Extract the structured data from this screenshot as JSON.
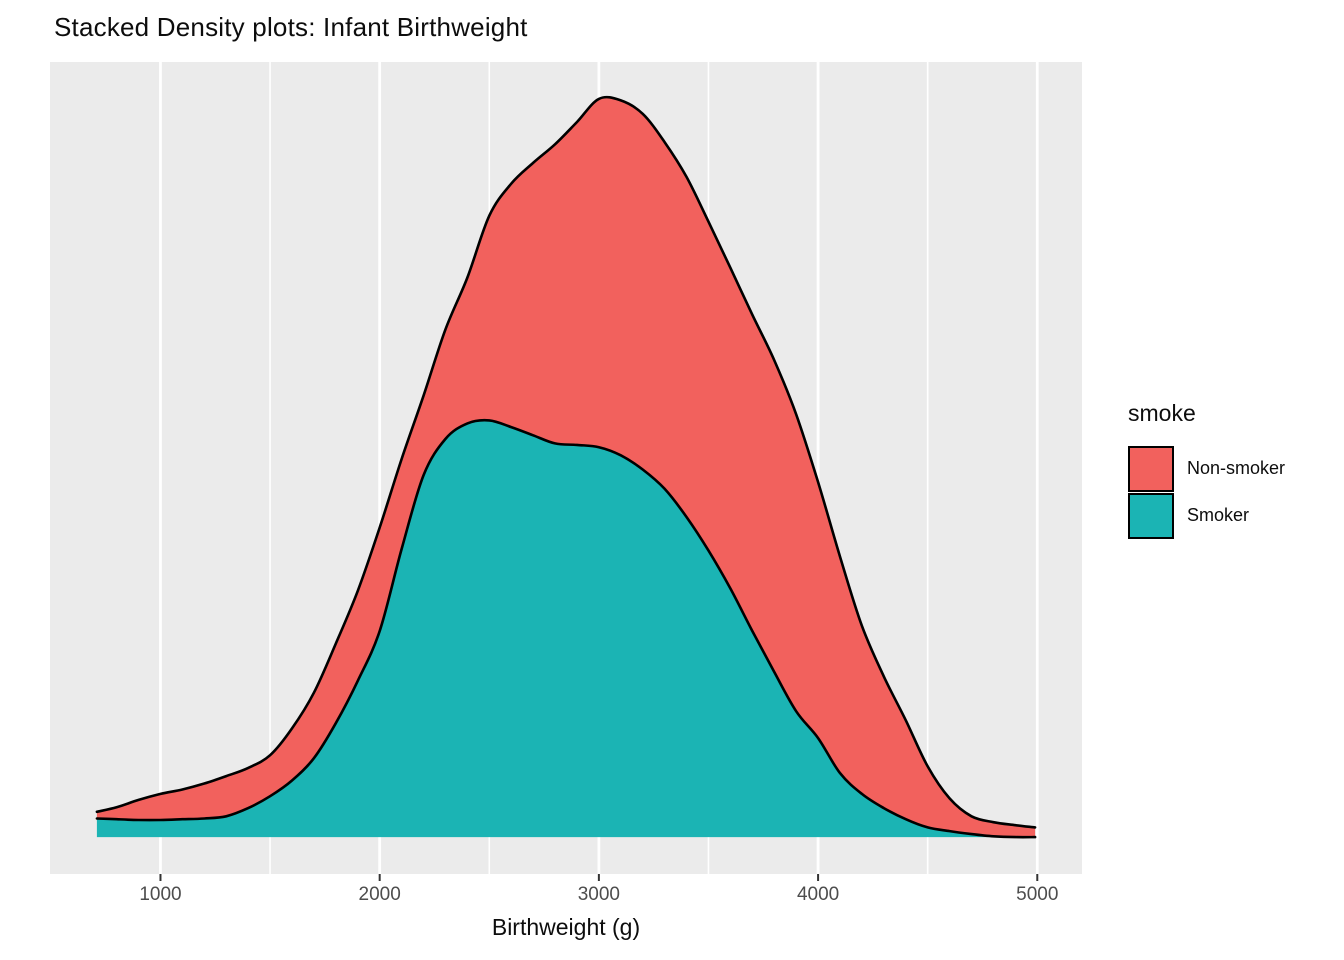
{
  "title": "Stacked Density plots: Infant Birthweight",
  "x_axis": {
    "label": "Birthweight (g)",
    "tick_labels": [
      "1000",
      "2000",
      "3000",
      "4000",
      "5000"
    ]
  },
  "y_axis": {
    "label": "",
    "tick_labels": []
  },
  "legend": {
    "title": "smoke",
    "items": [
      {
        "label": "Non-smoker",
        "color": "#F2615D"
      },
      {
        "label": "Smoker",
        "color": "#1BB4B4"
      }
    ]
  },
  "style": {
    "background": "#FFFFFF",
    "panel_background": "#EBEBEB",
    "grid_color": "#FFFFFF",
    "outline_color": "#000000",
    "tick_label_color": "#4D4D4D"
  },
  "chart_data": {
    "type": "area",
    "subtype": "stacked-density",
    "title": "Stacked Density plots: Infant Birthweight",
    "xlabel": "Birthweight (g)",
    "ylabel": "",
    "legend_title": "smoke",
    "legend_position": "right",
    "grid": "vertical-only",
    "xlim": [
      710,
      4990
    ],
    "ylim": [
      0,
      9.92
    ],
    "y_units": "density x 1e-4 per g",
    "x_ticks": [
      1000,
      2000,
      3000,
      4000,
      5000
    ],
    "x_minor_ticks": [
      1500,
      2500,
      3500,
      4500
    ],
    "x": [
      710,
      800,
      900,
      1000,
      1100,
      1200,
      1300,
      1400,
      1500,
      1600,
      1700,
      1800,
      1900,
      2000,
      2100,
      2200,
      2300,
      2400,
      2500,
      2600,
      2700,
      2800,
      2900,
      3000,
      3100,
      3200,
      3300,
      3400,
      3500,
      3600,
      3700,
      3800,
      3900,
      4000,
      4100,
      4200,
      4300,
      4400,
      4500,
      4600,
      4700,
      4800,
      4900,
      4990
    ],
    "series": [
      {
        "name": "Smoker",
        "color": "#1BB4B4",
        "stack_order": "bottom",
        "values": [
          0.25,
          0.24,
          0.23,
          0.23,
          0.24,
          0.25,
          0.28,
          0.39,
          0.55,
          0.76,
          1.06,
          1.53,
          2.1,
          2.77,
          3.87,
          4.86,
          5.35,
          5.56,
          5.6,
          5.51,
          5.4,
          5.29,
          5.27,
          5.24,
          5.13,
          4.94,
          4.68,
          4.3,
          3.85,
          3.34,
          2.77,
          2.22,
          1.69,
          1.33,
          0.86,
          0.58,
          0.39,
          0.24,
          0.13,
          0.08,
          0.04,
          0.01,
          0.0,
          0.0
        ]
      },
      {
        "name": "Non-smoker",
        "color": "#F2615D",
        "stack_order": "top",
        "values": [
          0.09,
          0.16,
          0.27,
          0.35,
          0.4,
          0.47,
          0.54,
          0.54,
          0.55,
          0.7,
          0.88,
          1.07,
          1.21,
          1.39,
          1.21,
          1.07,
          1.47,
          1.96,
          2.75,
          3.27,
          3.66,
          4.02,
          4.34,
          4.68,
          4.77,
          4.78,
          4.66,
          4.57,
          4.42,
          4.31,
          4.25,
          4.19,
          3.99,
          3.44,
          2.91,
          2.26,
          1.77,
          1.33,
          0.82,
          0.44,
          0.24,
          0.19,
          0.16,
          0.13
        ]
      }
    ]
  }
}
